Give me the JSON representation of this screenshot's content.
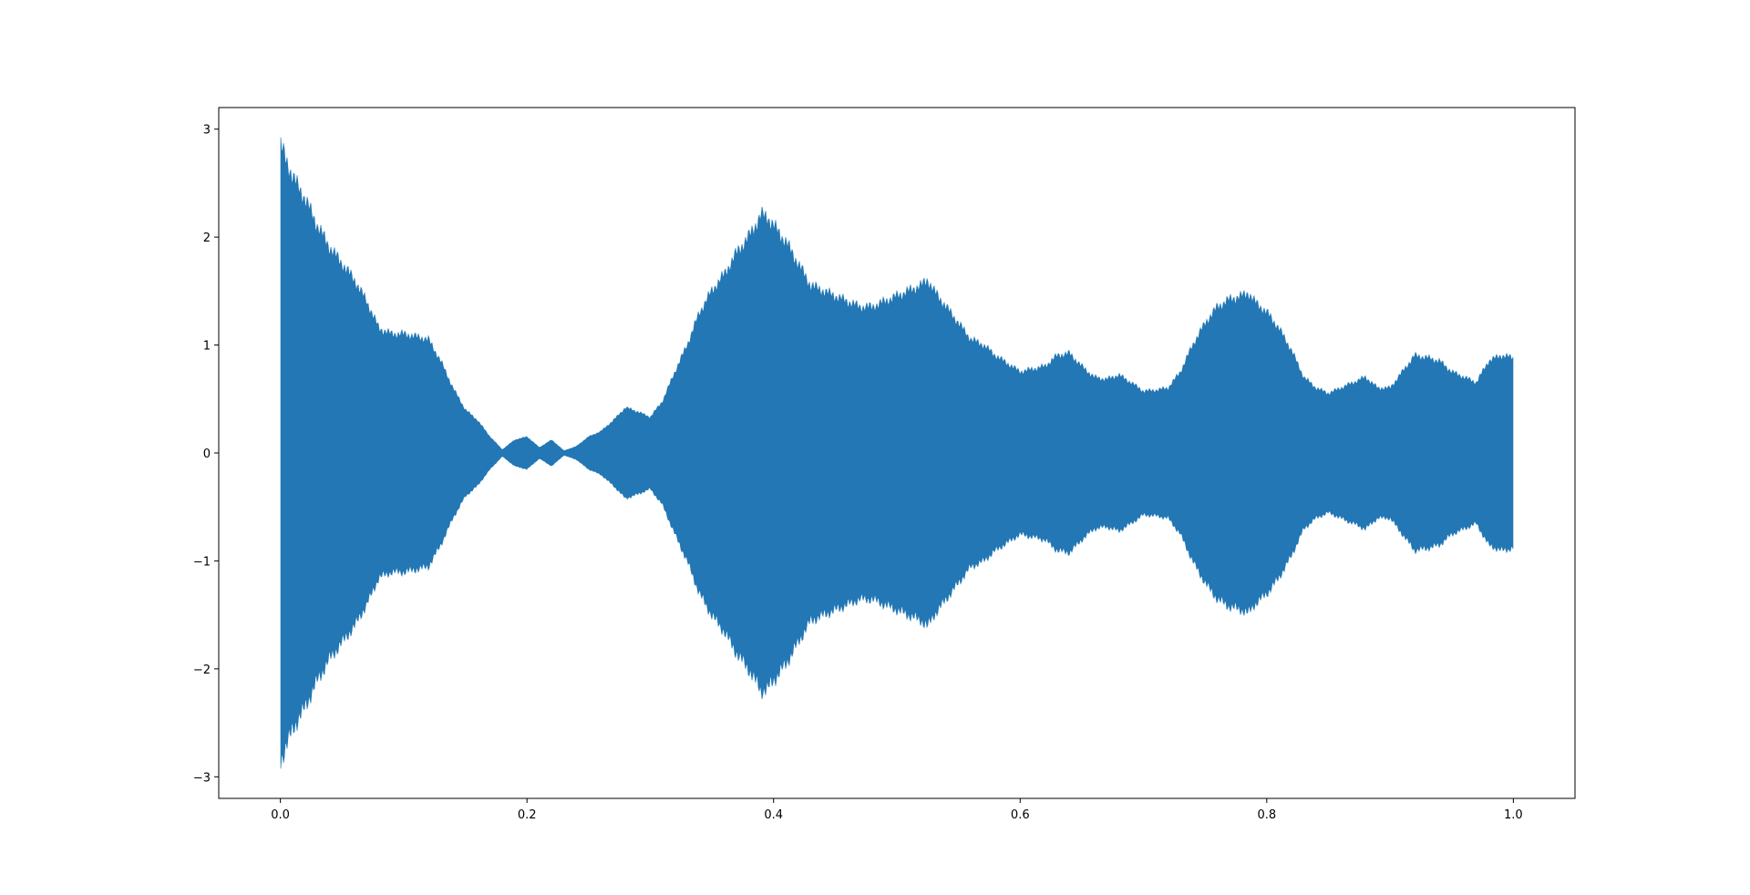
{
  "chart_data": {
    "type": "area",
    "title": "",
    "xlabel": "",
    "ylabel": "",
    "xlim": [
      -0.05,
      1.05
    ],
    "ylim": [
      -3.2,
      3.2
    ],
    "x_ticks": [
      0.0,
      0.2,
      0.4,
      0.6,
      0.8,
      1.0
    ],
    "x_tick_labels": [
      "0.0",
      "0.2",
      "0.4",
      "0.6",
      "0.8",
      "1.0"
    ],
    "y_ticks": [
      -3,
      -2,
      -1,
      0,
      1,
      2,
      3
    ],
    "y_tick_labels": [
      "−3",
      "−2",
      "−1",
      "0",
      "1",
      "2",
      "3"
    ],
    "grid": false,
    "legend": "none",
    "series": [
      {
        "color": "#2277b4",
        "style": "oscillating signal filled between symmetric upper and lower envelope",
        "envelope": {
          "x": [
            0.0,
            0.01,
            0.02,
            0.03,
            0.04,
            0.05,
            0.06,
            0.07,
            0.08,
            0.09,
            0.1,
            0.12,
            0.13,
            0.14,
            0.15,
            0.16,
            0.17,
            0.18,
            0.19,
            0.2,
            0.21,
            0.22,
            0.23,
            0.24,
            0.25,
            0.26,
            0.27,
            0.28,
            0.29,
            0.3,
            0.31,
            0.32,
            0.33,
            0.34,
            0.35,
            0.36,
            0.37,
            0.38,
            0.39,
            0.395,
            0.4,
            0.41,
            0.42,
            0.43,
            0.44,
            0.45,
            0.46,
            0.47,
            0.48,
            0.49,
            0.5,
            0.51,
            0.52,
            0.525,
            0.53,
            0.54,
            0.55,
            0.56,
            0.57,
            0.58,
            0.6,
            0.62,
            0.63,
            0.64,
            0.65,
            0.66,
            0.67,
            0.68,
            0.69,
            0.7,
            0.71,
            0.72,
            0.73,
            0.74,
            0.75,
            0.76,
            0.77,
            0.78,
            0.785,
            0.79,
            0.8,
            0.81,
            0.82,
            0.83,
            0.84,
            0.85,
            0.86,
            0.87,
            0.88,
            0.89,
            0.9,
            0.91,
            0.92,
            0.93,
            0.94,
            0.95,
            0.96,
            0.97,
            0.98,
            0.99,
            1.0
          ],
          "amplitude": [
            2.85,
            2.55,
            2.35,
            2.1,
            1.9,
            1.75,
            1.6,
            1.4,
            1.15,
            1.1,
            1.1,
            1.05,
            0.85,
            0.6,
            0.4,
            0.3,
            0.15,
            0.03,
            0.12,
            0.15,
            0.05,
            0.12,
            0.02,
            0.06,
            0.15,
            0.2,
            0.3,
            0.42,
            0.38,
            0.33,
            0.48,
            0.75,
            1.0,
            1.3,
            1.5,
            1.65,
            1.85,
            2.0,
            2.2,
            2.18,
            2.1,
            1.95,
            1.75,
            1.55,
            1.5,
            1.45,
            1.4,
            1.35,
            1.35,
            1.4,
            1.45,
            1.5,
            1.55,
            1.6,
            1.5,
            1.35,
            1.2,
            1.05,
            1.0,
            0.9,
            0.75,
            0.8,
            0.9,
            0.92,
            0.8,
            0.7,
            0.68,
            0.72,
            0.65,
            0.57,
            0.58,
            0.6,
            0.75,
            1.0,
            1.2,
            1.35,
            1.42,
            1.45,
            1.48,
            1.4,
            1.3,
            1.15,
            0.95,
            0.7,
            0.6,
            0.55,
            0.6,
            0.65,
            0.7,
            0.6,
            0.6,
            0.75,
            0.9,
            0.88,
            0.85,
            0.75,
            0.7,
            0.65,
            0.85,
            0.9,
            0.88
          ]
        }
      }
    ]
  }
}
